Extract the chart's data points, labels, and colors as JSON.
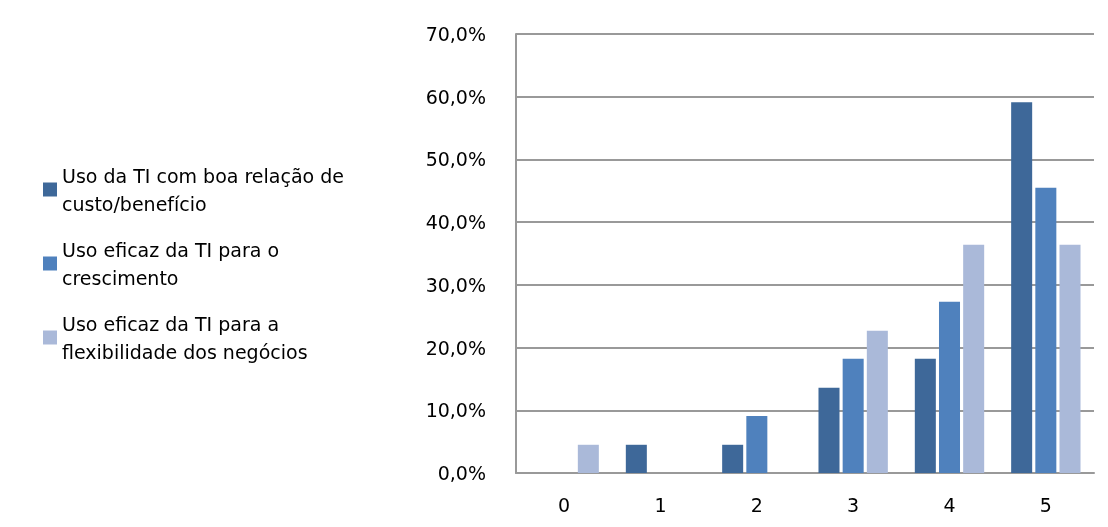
{
  "chart_data": {
    "type": "bar",
    "categories": [
      "0",
      "1",
      "2",
      "3",
      "4",
      "5"
    ],
    "series": [
      {
        "name": "Uso da TI com boa relação de custo/benefício",
        "color": "#3e6899",
        "values": [
          0,
          4.5,
          4.5,
          13.6,
          18.2,
          59.1
        ]
      },
      {
        "name": "Uso eficaz da TI para o crescimento",
        "color": "#4f81bd",
        "values": [
          0,
          0,
          9.1,
          18.2,
          27.3,
          45.5
        ]
      },
      {
        "name": "Uso eficaz da TI para a flexibilidade dos negócios",
        "color": "#aab9d9",
        "values": [
          4.5,
          0,
          0,
          22.7,
          36.4,
          36.4
        ]
      }
    ],
    "ylim": [
      0,
      70
    ],
    "yticks": [
      {
        "value": 0,
        "label": "0,0%"
      },
      {
        "value": 10,
        "label": "10,0%"
      },
      {
        "value": 20,
        "label": "20,0%"
      },
      {
        "value": 30,
        "label": "30,0%"
      },
      {
        "value": 40,
        "label": "40,0%"
      },
      {
        "value": 50,
        "label": "50,0%"
      },
      {
        "value": 60,
        "label": "60,0%"
      },
      {
        "value": 70,
        "label": "70,0%"
      }
    ],
    "grid": "y",
    "legend": "left"
  }
}
